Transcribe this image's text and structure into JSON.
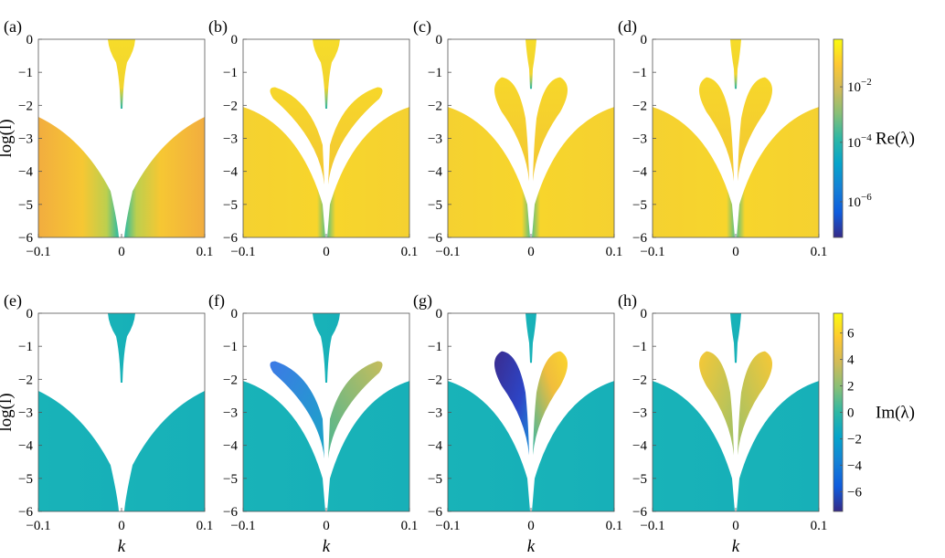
{
  "colors": {
    "viridis_stops": [
      "#440154",
      "#3b528b",
      "#21918c",
      "#5ec962",
      "#fde725"
    ],
    "parula_stops": [
      "#352a87",
      "#0f5cdd",
      "#1481d6",
      "#06a4ca",
      "#2eb7a4",
      "#87bf77",
      "#d1bb59",
      "#fec832",
      "#f9fb0e"
    ]
  },
  "chart_data": [
    {
      "id": "a",
      "type": "heatmap",
      "tag": "(a)",
      "colorbar": "re",
      "xlim": [
        -0.1,
        0.1
      ],
      "ylim": [
        -6,
        0
      ],
      "x_ticks": [
        "-0.1",
        "0",
        "0.1"
      ],
      "y_ticks": [
        "0",
        "-1",
        "-2",
        "-3",
        "-4",
        "-5",
        "-6"
      ],
      "ylabel": "log(l)",
      "xlabel": "",
      "regions": [
        "top_narrow",
        "wings_wide"
      ]
    },
    {
      "id": "b",
      "type": "heatmap",
      "tag": "(b)",
      "colorbar": "re",
      "xlim": [
        -0.1,
        0.1
      ],
      "ylim": [
        -6,
        0
      ],
      "x_ticks": [
        "-0.1",
        "0",
        "0.1"
      ],
      "y_ticks": [
        "0",
        "-1",
        "-2",
        "-3",
        "-4",
        "-5",
        "-6"
      ],
      "ylabel": "",
      "xlabel": "",
      "regions": [
        "top_narrow",
        "lobes_wide",
        "wings_full"
      ]
    },
    {
      "id": "c",
      "type": "heatmap",
      "tag": "(c)",
      "colorbar": "re",
      "xlim": [
        -0.1,
        0.1
      ],
      "ylim": [
        -6,
        0
      ],
      "x_ticks": [
        "-0.1",
        "0",
        "0.1"
      ],
      "y_ticks": [
        "0",
        "-1",
        "-2",
        "-3",
        "-4",
        "-5",
        "-6"
      ],
      "ylabel": "",
      "xlabel": "",
      "regions": [
        "top_thin",
        "lobes_narrow",
        "wings_full"
      ]
    },
    {
      "id": "d",
      "type": "heatmap",
      "tag": "(d)",
      "colorbar": "re",
      "xlim": [
        -0.1,
        0.1
      ],
      "ylim": [
        -6,
        0
      ],
      "x_ticks": [
        "-0.1",
        "0",
        "0.1"
      ],
      "y_ticks": [
        "0",
        "-1",
        "-2",
        "-3",
        "-4",
        "-5",
        "-6"
      ],
      "ylabel": "",
      "xlabel": "",
      "regions": [
        "top_thin",
        "lobes_narrow",
        "wings_full"
      ]
    },
    {
      "id": "e",
      "type": "heatmap",
      "tag": "(e)",
      "colorbar": "im",
      "xlim": [
        -0.1,
        0.1
      ],
      "ylim": [
        -6,
        0
      ],
      "x_ticks": [
        "-0.1",
        "0",
        "0.1"
      ],
      "y_ticks": [
        "0",
        "-1",
        "-2",
        "-3",
        "-4",
        "-5",
        "-6"
      ],
      "ylabel": "log(l)",
      "xlabel": "k",
      "regions": [
        "top_narrow",
        "wings_wide"
      ]
    },
    {
      "id": "f",
      "type": "heatmap",
      "tag": "(f)",
      "colorbar": "im",
      "xlim": [
        -0.1,
        0.1
      ],
      "ylim": [
        -6,
        0
      ],
      "x_ticks": [
        "-0.1",
        "0",
        "0.1"
      ],
      "y_ticks": [
        "0",
        "-1",
        "-2",
        "-3",
        "-4",
        "-5",
        "-6"
      ],
      "ylabel": "",
      "xlabel": "k",
      "regions": [
        "top_narrow",
        "lobes_wide",
        "wings_full"
      ]
    },
    {
      "id": "g",
      "type": "heatmap",
      "tag": "(g)",
      "colorbar": "im",
      "xlim": [
        -0.1,
        0.1
      ],
      "ylim": [
        -6,
        0
      ],
      "x_ticks": [
        "-0.1",
        "0",
        "0.1"
      ],
      "y_ticks": [
        "0",
        "-1",
        "-2",
        "-3",
        "-4",
        "-5",
        "-6"
      ],
      "ylabel": "",
      "xlabel": "k",
      "regions": [
        "top_thin",
        "lobes_narrow",
        "wings_full"
      ]
    },
    {
      "id": "h",
      "type": "heatmap",
      "tag": "(h)",
      "colorbar": "im",
      "xlim": [
        -0.1,
        0.1
      ],
      "ylim": [
        -6,
        0
      ],
      "x_ticks": [
        "-0.1",
        "0",
        "0.1"
      ],
      "y_ticks": [
        "0",
        "-1",
        "-2",
        "-3",
        "-4",
        "-5",
        "-6"
      ],
      "ylabel": "",
      "xlabel": "k",
      "regions": [
        "top_thin",
        "lobes_narrow",
        "wings_full"
      ]
    }
  ],
  "colorbars": {
    "re": {
      "label": "Re(λ)",
      "scale": "log",
      "ticks": [
        "10−2",
        "10−4",
        "10−6"
      ]
    },
    "im": {
      "label": "Im(λ)",
      "scale": "linear",
      "range": [
        -7.5,
        7.5
      ],
      "ticks": [
        "6",
        "4",
        "2",
        "0",
        "−2",
        "−4",
        "−6"
      ]
    }
  }
}
